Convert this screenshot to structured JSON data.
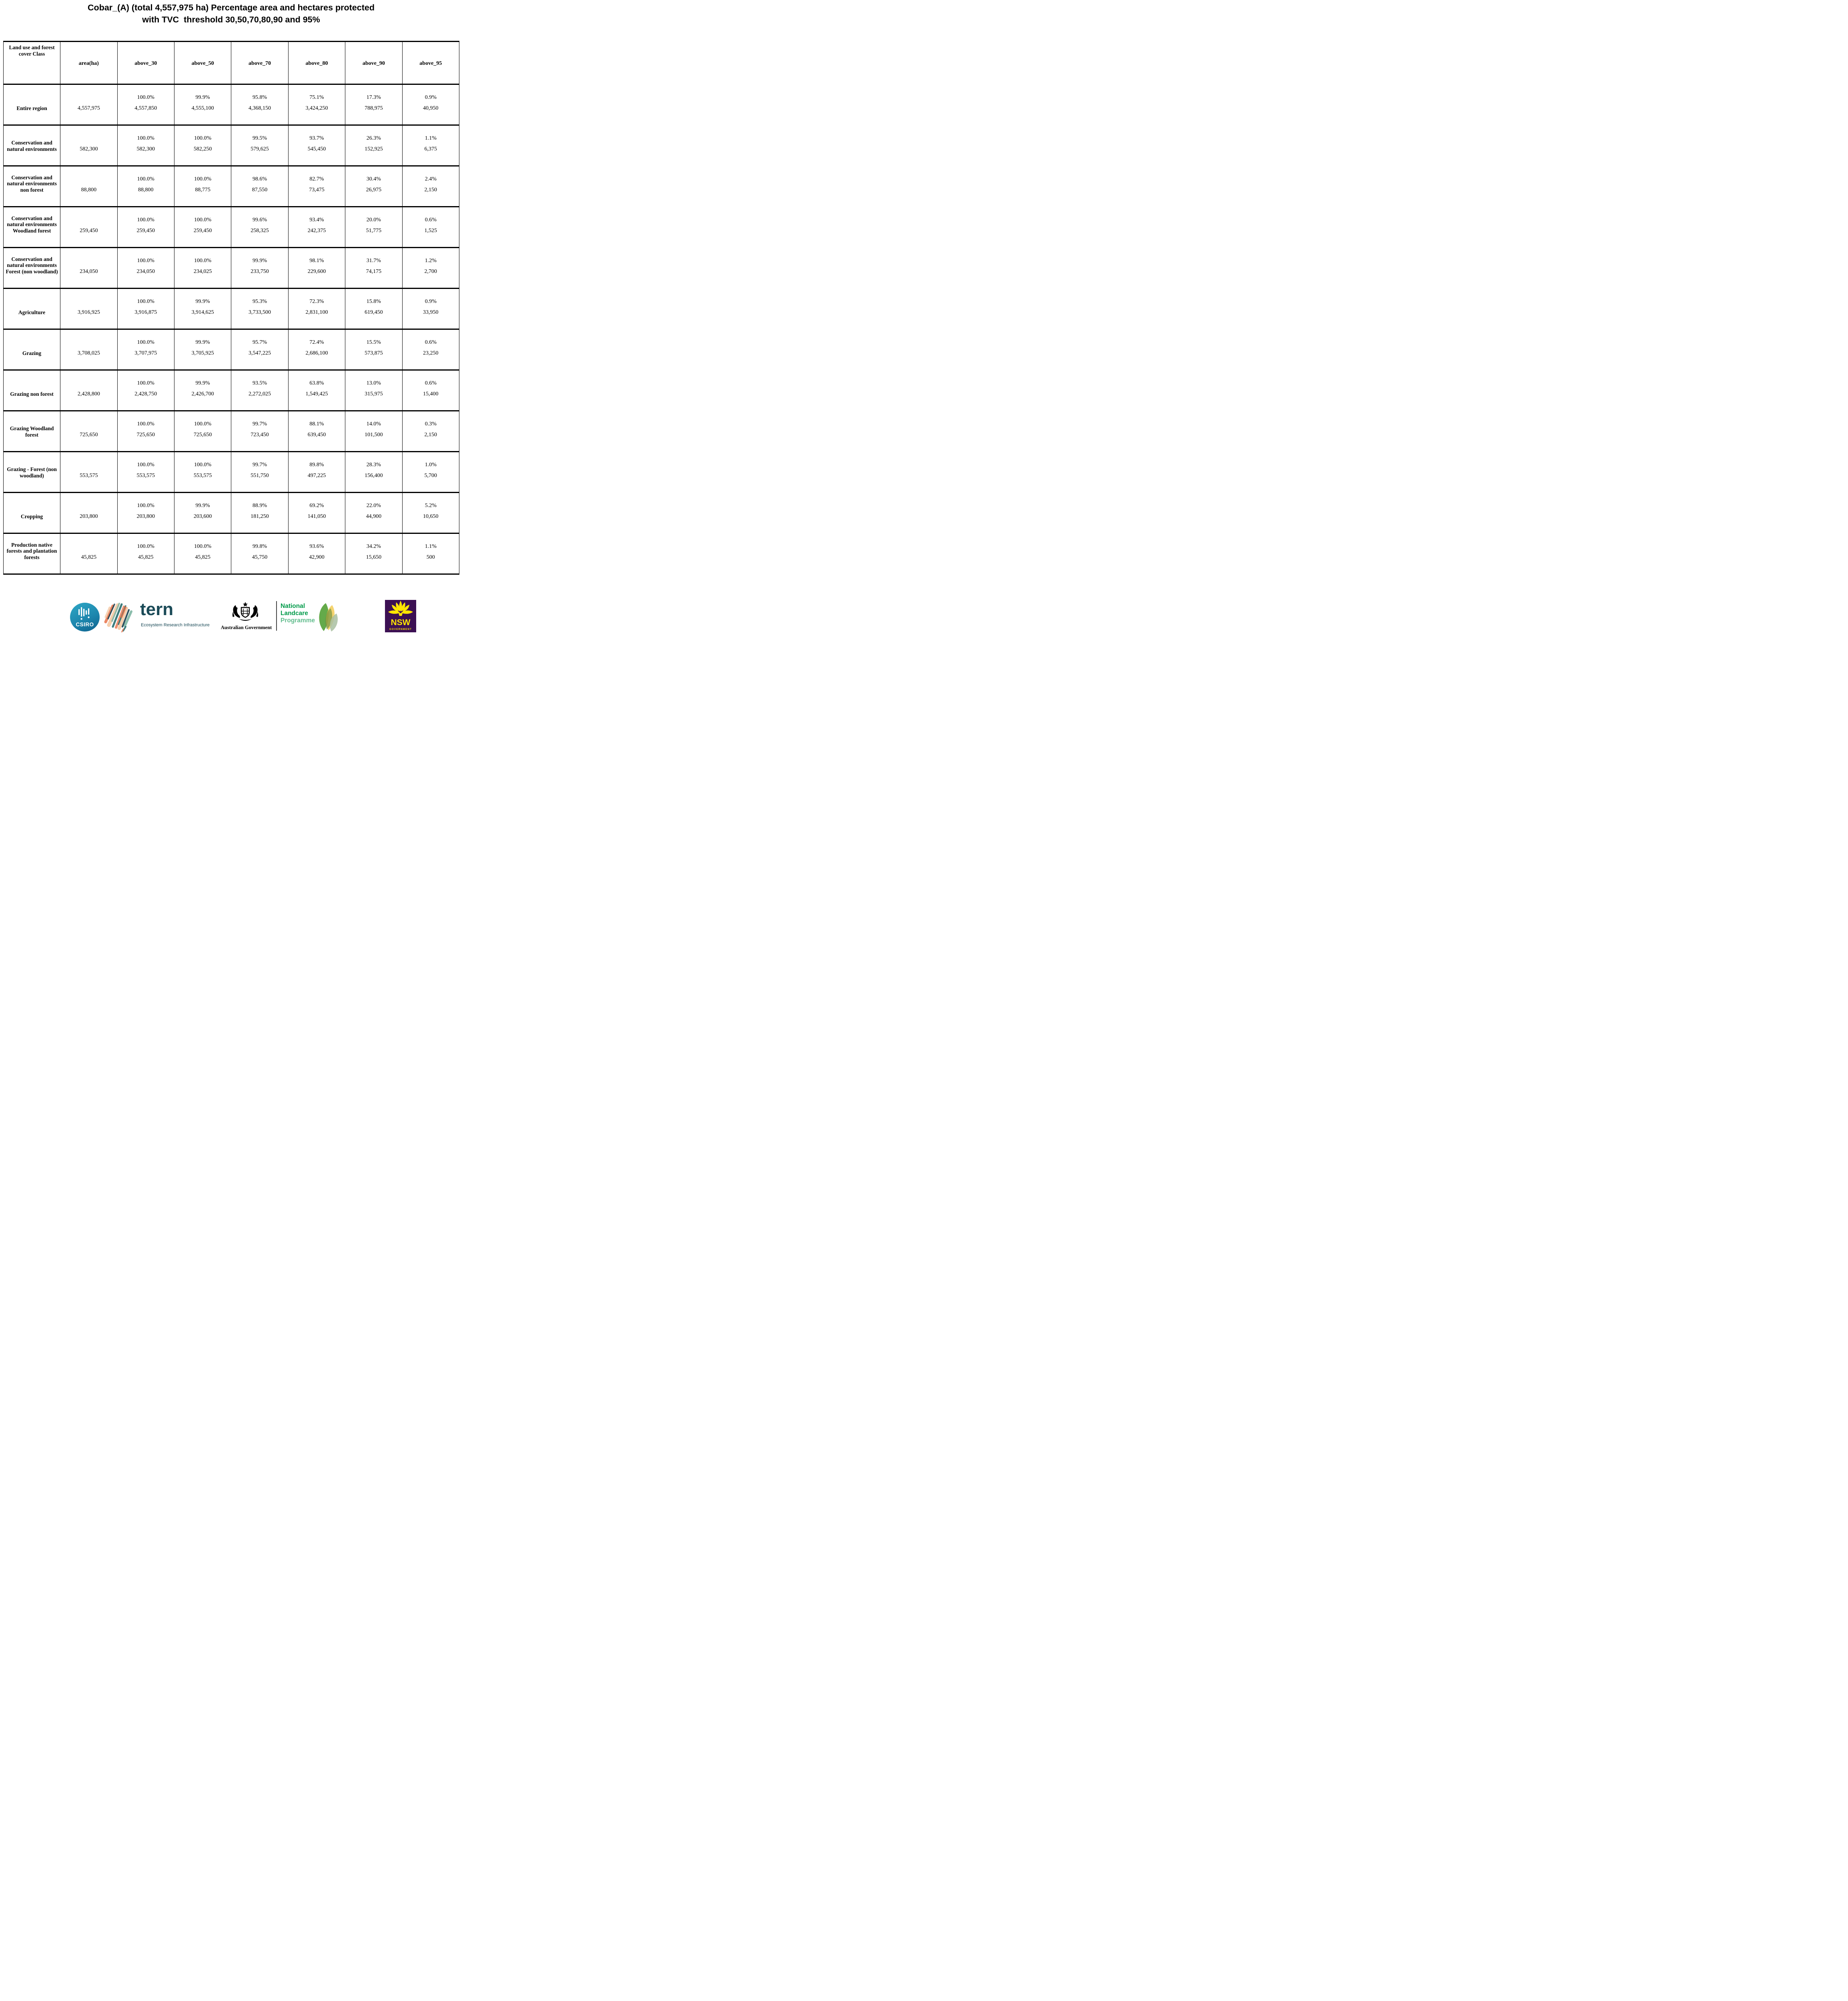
{
  "title": {
    "line1": "Cobar_(A) (total 4,557,975 ha) Percentage area and hectares protected",
    "line2": "with TVC  threshold 30,50,70,80,90 and 95%"
  },
  "table": {
    "columns": [
      "Land use and forest cover Class",
      "area(ha)",
      "above_30",
      "above_50",
      "above_70",
      "above_80",
      "above_90",
      "above_95"
    ],
    "rows": [
      {
        "class": "Entire region",
        "area": "4,557,975",
        "cells": [
          {
            "pct": "100.0%",
            "ha": "4,557,850"
          },
          {
            "pct": "99.9%",
            "ha": "4,555,100"
          },
          {
            "pct": "95.8%",
            "ha": "4,368,150"
          },
          {
            "pct": "75.1%",
            "ha": "3,424,250"
          },
          {
            "pct": "17.3%",
            "ha": "788,975"
          },
          {
            "pct": "0.9%",
            "ha": "40,950"
          }
        ]
      },
      {
        "class": "Conservation and natural environments",
        "area": "582,300",
        "cells": [
          {
            "pct": "100.0%",
            "ha": "582,300"
          },
          {
            "pct": "100.0%",
            "ha": "582,250"
          },
          {
            "pct": "99.5%",
            "ha": "579,625"
          },
          {
            "pct": "93.7%",
            "ha": "545,450"
          },
          {
            "pct": "26.3%",
            "ha": "152,925"
          },
          {
            "pct": "1.1%",
            "ha": "6,375"
          }
        ]
      },
      {
        "class": "Conservation and natural environments non forest",
        "area": "88,800",
        "cells": [
          {
            "pct": "100.0%",
            "ha": "88,800"
          },
          {
            "pct": "100.0%",
            "ha": "88,775"
          },
          {
            "pct": "98.6%",
            "ha": "87,550"
          },
          {
            "pct": "82.7%",
            "ha": "73,475"
          },
          {
            "pct": "30.4%",
            "ha": "26,975"
          },
          {
            "pct": "2.4%",
            "ha": "2,150"
          }
        ]
      },
      {
        "class": "Conservation and natural environments Woodland forest",
        "area": "259,450",
        "cells": [
          {
            "pct": "100.0%",
            "ha": "259,450"
          },
          {
            "pct": "100.0%",
            "ha": "259,450"
          },
          {
            "pct": "99.6%",
            "ha": "258,325"
          },
          {
            "pct": "93.4%",
            "ha": "242,375"
          },
          {
            "pct": "20.0%",
            "ha": "51,775"
          },
          {
            "pct": "0.6%",
            "ha": "1,525"
          }
        ]
      },
      {
        "class": "Conservation and natural environments Forest (non woodland)",
        "area": "234,050",
        "cells": [
          {
            "pct": "100.0%",
            "ha": "234,050"
          },
          {
            "pct": "100.0%",
            "ha": "234,025"
          },
          {
            "pct": "99.9%",
            "ha": "233,750"
          },
          {
            "pct": "98.1%",
            "ha": "229,600"
          },
          {
            "pct": "31.7%",
            "ha": "74,175"
          },
          {
            "pct": "1.2%",
            "ha": "2,700"
          }
        ]
      },
      {
        "class": "Agriculture",
        "area": "3,916,925",
        "cells": [
          {
            "pct": "100.0%",
            "ha": "3,916,875"
          },
          {
            "pct": "99.9%",
            "ha": "3,914,625"
          },
          {
            "pct": "95.3%",
            "ha": "3,733,500"
          },
          {
            "pct": "72.3%",
            "ha": "2,831,100"
          },
          {
            "pct": "15.8%",
            "ha": "619,450"
          },
          {
            "pct": "0.9%",
            "ha": "33,950"
          }
        ]
      },
      {
        "class": "Grazing",
        "area": "3,708,025",
        "cells": [
          {
            "pct": "100.0%",
            "ha": "3,707,975"
          },
          {
            "pct": "99.9%",
            "ha": "3,705,925"
          },
          {
            "pct": "95.7%",
            "ha": "3,547,225"
          },
          {
            "pct": "72.4%",
            "ha": "2,686,100"
          },
          {
            "pct": "15.5%",
            "ha": "573,875"
          },
          {
            "pct": "0.6%",
            "ha": "23,250"
          }
        ]
      },
      {
        "class": "Grazing non forest",
        "area": "2,428,800",
        "cells": [
          {
            "pct": "100.0%",
            "ha": "2,428,750"
          },
          {
            "pct": "99.9%",
            "ha": "2,426,700"
          },
          {
            "pct": "93.5%",
            "ha": "2,272,025"
          },
          {
            "pct": "63.8%",
            "ha": "1,549,425"
          },
          {
            "pct": "13.0%",
            "ha": "315,975"
          },
          {
            "pct": "0.6%",
            "ha": "15,400"
          }
        ]
      },
      {
        "class": "Grazing Woodland forest",
        "area": "725,650",
        "cells": [
          {
            "pct": "100.0%",
            "ha": "725,650"
          },
          {
            "pct": "100.0%",
            "ha": "725,650"
          },
          {
            "pct": "99.7%",
            "ha": "723,450"
          },
          {
            "pct": "88.1%",
            "ha": "639,450"
          },
          {
            "pct": "14.0%",
            "ha": "101,500"
          },
          {
            "pct": "0.3%",
            "ha": "2,150"
          }
        ]
      },
      {
        "class": "Grazing - Forest (non woodland)",
        "area": "553,575",
        "cells": [
          {
            "pct": "100.0%",
            "ha": "553,575"
          },
          {
            "pct": "100.0%",
            "ha": "553,575"
          },
          {
            "pct": "99.7%",
            "ha": "551,750"
          },
          {
            "pct": "89.8%",
            "ha": "497,225"
          },
          {
            "pct": "28.3%",
            "ha": "156,400"
          },
          {
            "pct": "1.0%",
            "ha": "5,700"
          }
        ]
      },
      {
        "class": "Cropping",
        "area": "203,800",
        "cells": [
          {
            "pct": "100.0%",
            "ha": "203,800"
          },
          {
            "pct": "99.9%",
            "ha": "203,600"
          },
          {
            "pct": "88.9%",
            "ha": "181,250"
          },
          {
            "pct": "69.2%",
            "ha": "141,050"
          },
          {
            "pct": "22.0%",
            "ha": "44,900"
          },
          {
            "pct": "5.2%",
            "ha": "10,650"
          }
        ]
      },
      {
        "class": "Production native forests and plantation forests",
        "area": "45,825",
        "cells": [
          {
            "pct": "100.0%",
            "ha": "45,825"
          },
          {
            "pct": "100.0%",
            "ha": "45,825"
          },
          {
            "pct": "99.8%",
            "ha": "45,750"
          },
          {
            "pct": "93.6%",
            "ha": "42,900"
          },
          {
            "pct": "34.2%",
            "ha": "15,650"
          },
          {
            "pct": "1.1%",
            "ha": "500"
          }
        ]
      }
    ]
  },
  "footer": {
    "csiro": {
      "label": "CSIRO"
    },
    "tern": {
      "name": "tern",
      "tagline": "Ecosystem Research Infrastructure"
    },
    "australian_government": {
      "label": "Australian Government"
    },
    "landcare": {
      "line1": "National",
      "line2": "Landcare",
      "line3": "Programme"
    },
    "nsw": {
      "name": "NSW",
      "sub": "GOVERNMENT"
    }
  },
  "colors": {
    "table_border": "#000000",
    "csiro_blue_top": "#2fa8c6",
    "csiro_blue_bottom": "#0d608c",
    "tern_dark_teal": "#1a4a57",
    "tern_orange": "#e8734a",
    "tern_peach": "#f5c9a5",
    "tern_sage": "#7fb6a4",
    "landcare_green": "#009a49",
    "landcare_light_green": "#63bd8e",
    "leaf_green": "#57a33b",
    "leaf_yellow": "#f2c94c",
    "nsw_purple": "#3c1053",
    "nsw_yellow": "#ffe600"
  }
}
